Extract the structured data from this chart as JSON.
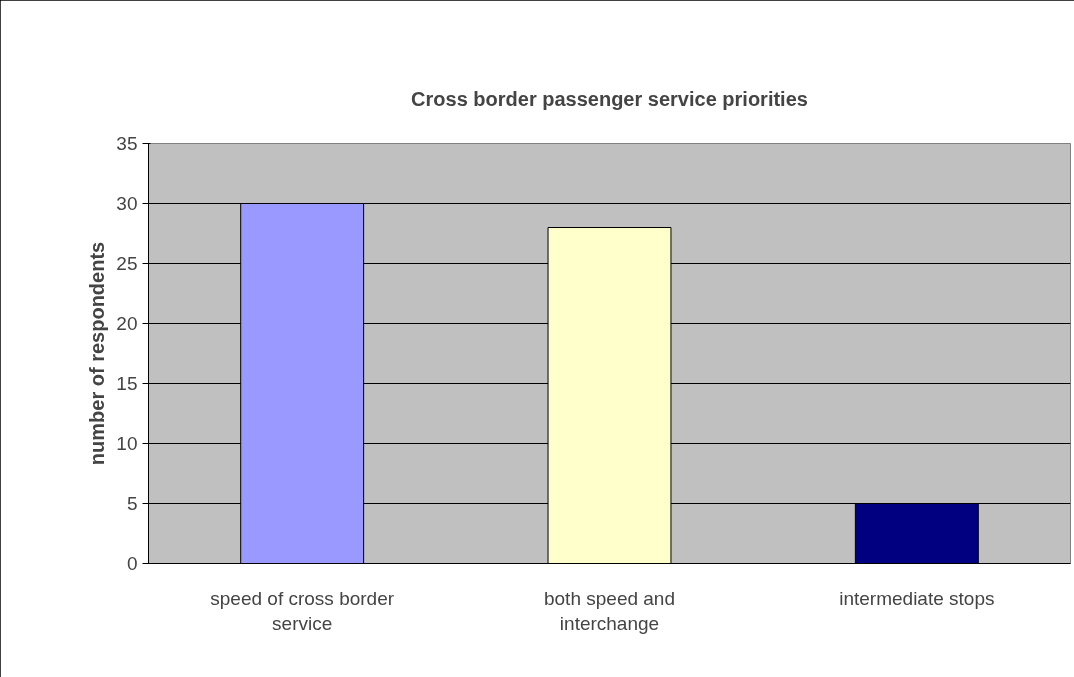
{
  "chart_data": {
    "type": "bar",
    "title": "Cross border passenger service priorities",
    "ylabel": "number of respondents",
    "categories": [
      "speed of cross border service",
      "both speed and interchange",
      "intermediate stops"
    ],
    "values": [
      30,
      28,
      5
    ],
    "colors": [
      "#9999ff",
      "#ffffcc",
      "#000080"
    ],
    "ylim": [
      0,
      35
    ],
    "yticks": [
      0,
      5,
      10,
      15,
      20,
      25,
      30,
      35
    ],
    "grid": "y"
  }
}
